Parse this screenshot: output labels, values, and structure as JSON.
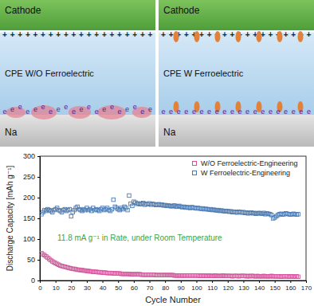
{
  "diagram": {
    "positive_symbol": "+",
    "electron_symbol": "e",
    "panels": [
      {
        "top": "Cathode",
        "middle": "CPE W/O Ferroelectric",
        "bottom": "Na"
      },
      {
        "top": "Cathode",
        "middle": "CPE W Ferroelectric",
        "bottom": "Na"
      }
    ]
  },
  "chart_data": {
    "type": "scatter",
    "x_label": "Cycle Number",
    "y_label": "Discharge Capacity [mAh g⁻¹]",
    "annotation": "11.8 mA g⁻¹ in Rate, under Room Temperature",
    "x": [
      1,
      2,
      3,
      4,
      5,
      6,
      7,
      8,
      9,
      10,
      11,
      12,
      13,
      14,
      15,
      16,
      17,
      18,
      19,
      20,
      21,
      22,
      23,
      24,
      25,
      26,
      27,
      28,
      29,
      30,
      31,
      32,
      33,
      34,
      35,
      36,
      37,
      38,
      39,
      40,
      41,
      42,
      43,
      44,
      45,
      46,
      47,
      48,
      49,
      50,
      51,
      52,
      53,
      54,
      55,
      56,
      57,
      58,
      59,
      60,
      61,
      62,
      63,
      64,
      65,
      66,
      67,
      68,
      69,
      70,
      71,
      72,
      73,
      74,
      75,
      76,
      77,
      78,
      79,
      80,
      81,
      82,
      83,
      84,
      85,
      86,
      87,
      88,
      89,
      90,
      91,
      92,
      93,
      94,
      95,
      96,
      97,
      98,
      99,
      100,
      101,
      102,
      103,
      104,
      105,
      106,
      107,
      108,
      109,
      110,
      111,
      112,
      113,
      114,
      115,
      116,
      117,
      118,
      119,
      120,
      121,
      122,
      123,
      124,
      125,
      126,
      127,
      128,
      129,
      130,
      131,
      132,
      133,
      134,
      135,
      136,
      137,
      138,
      139,
      140,
      141,
      142,
      143,
      144,
      145,
      146,
      147,
      148,
      149,
      150,
      151,
      152,
      153,
      154,
      155,
      156,
      157,
      158,
      159,
      160,
      161,
      162,
      163,
      164,
      165
    ],
    "series": [
      {
        "name": "W/O Ferroelectric-Engineering",
        "color": "#d4549b",
        "marker": "square",
        "values": [
          66,
          63,
          61,
          58,
          55,
          52,
          49,
          46,
          44,
          42,
          40,
          38,
          36,
          35,
          34,
          33,
          32,
          31,
          30,
          29,
          28,
          28,
          27,
          26,
          26,
          25,
          25,
          24,
          24,
          23,
          23,
          22,
          22,
          21,
          21,
          21,
          20,
          20,
          20,
          19,
          19,
          19,
          18,
          18,
          18,
          18,
          17,
          17,
          17,
          17,
          17,
          16,
          16,
          16,
          16,
          16,
          16,
          15,
          15,
          15,
          15,
          15,
          15,
          15,
          14,
          14,
          14,
          14,
          14,
          14,
          14,
          14,
          14,
          13,
          13,
          13,
          13,
          13,
          13,
          13,
          13,
          13,
          13,
          13,
          13,
          12,
          12,
          12,
          12,
          12,
          12,
          12,
          12,
          12,
          12,
          12,
          12,
          12,
          12,
          12,
          12,
          11,
          12,
          11,
          12,
          11,
          11,
          12,
          11,
          11,
          11,
          12,
          11,
          11,
          11,
          11,
          12,
          11,
          11,
          11,
          11,
          11,
          10,
          11,
          11,
          11,
          10,
          11,
          11,
          11,
          11,
          10,
          11,
          10,
          11,
          11,
          10,
          10,
          11,
          10,
          10,
          10,
          11,
          10,
          10,
          10,
          10,
          11,
          10,
          10,
          10,
          10,
          10,
          9,
          10,
          10,
          10,
          10,
          9,
          10,
          10,
          9,
          10,
          10,
          9
        ]
      },
      {
        "name": "W Ferroelectric-Engineering",
        "color": "#4a78b0",
        "marker": "square",
        "values": [
          160,
          165,
          170,
          168,
          172,
          170,
          168,
          165,
          170,
          172,
          175,
          170,
          168,
          165,
          170,
          172,
          168,
          170,
          172,
          155,
          165,
          170,
          175,
          178,
          172,
          170,
          168,
          172,
          170,
          175,
          170,
          172,
          168,
          175,
          170,
          172,
          170,
          168,
          172,
          175,
          170,
          172,
          175,
          170,
          168,
          172,
          195,
          178,
          175,
          172,
          170,
          175,
          172,
          178,
          175,
          170,
          205,
          185,
          180,
          190,
          188,
          185,
          186,
          184,
          185,
          187,
          183,
          185,
          184,
          186,
          183,
          185,
          184,
          182,
          183,
          184,
          182,
          183,
          181,
          182,
          180,
          181,
          180,
          179,
          180,
          181,
          178,
          179,
          180,
          178,
          177,
          178,
          176,
          177,
          176,
          175,
          177,
          176,
          175,
          174,
          175,
          174,
          173,
          174,
          172,
          173,
          172,
          171,
          172,
          170,
          171,
          170,
          169,
          170,
          168,
          169,
          168,
          167,
          168,
          167,
          166,
          167,
          165,
          166,
          165,
          164,
          166,
          165,
          164,
          165,
          163,
          164,
          162,
          163,
          164,
          162,
          163,
          161,
          162,
          163,
          162,
          161,
          163,
          160,
          162,
          161,
          160,
          158,
          150,
          152,
          155,
          158,
          160,
          161,
          159,
          160,
          162,
          161,
          160,
          159,
          160,
          161,
          160,
          159,
          160
        ]
      }
    ],
    "xlim": [
      0,
      170
    ],
    "xticks": [
      0,
      10,
      20,
      30,
      40,
      50,
      60,
      70,
      80,
      90,
      100,
      110,
      120,
      130,
      140,
      150,
      160,
      170
    ],
    "ylim": [
      0,
      300
    ],
    "yticks": [
      0,
      50,
      100,
      150,
      200,
      250,
      300
    ],
    "legend": "upper right"
  }
}
